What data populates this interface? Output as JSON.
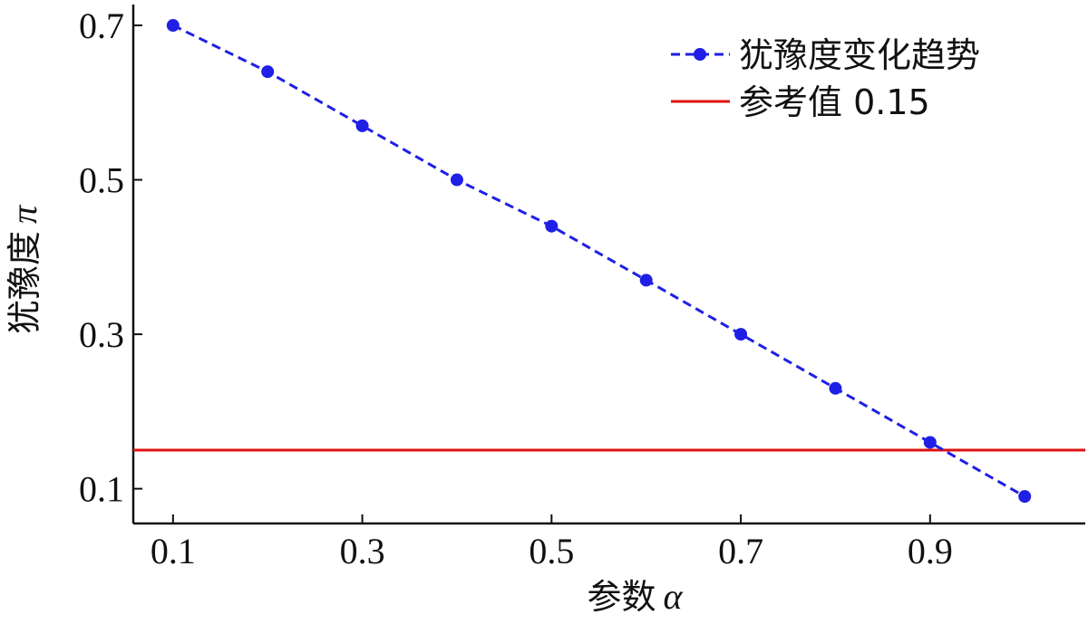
{
  "chart_data": {
    "type": "line",
    "title": "",
    "x": [
      0.1,
      0.2,
      0.3,
      0.4,
      0.5,
      0.6,
      0.7,
      0.8,
      0.9,
      1.0
    ],
    "series": [
      {
        "name": "犹豫度变化趋势",
        "style": "dashed-with-markers",
        "color": "#1f1fe6",
        "values": [
          0.7,
          0.64,
          0.57,
          0.5,
          0.44,
          0.37,
          0.3,
          0.23,
          0.16,
          0.09
        ]
      }
    ],
    "reference_line": {
      "name": "参考值 0.15",
      "value": 0.15,
      "color": "#e01010"
    },
    "xlabel": {
      "text": "参数",
      "symbol": "α"
    },
    "ylabel": {
      "text": "犹豫度",
      "symbol": "π"
    },
    "xticks": [
      0.1,
      0.3,
      0.5,
      0.7,
      0.9
    ],
    "xtick_labels": [
      "0.1",
      "0.3",
      "0.5",
      "0.7",
      "0.9"
    ],
    "yticks": [
      0.1,
      0.3,
      0.5,
      0.7
    ],
    "ytick_labels": [
      "0.1",
      "0.3",
      "0.5",
      "0.7"
    ],
    "xlim": [
      0.058,
      1.064
    ],
    "ylim": [
      0.055,
      0.727
    ],
    "grid": false,
    "legend_position": "top-right"
  }
}
